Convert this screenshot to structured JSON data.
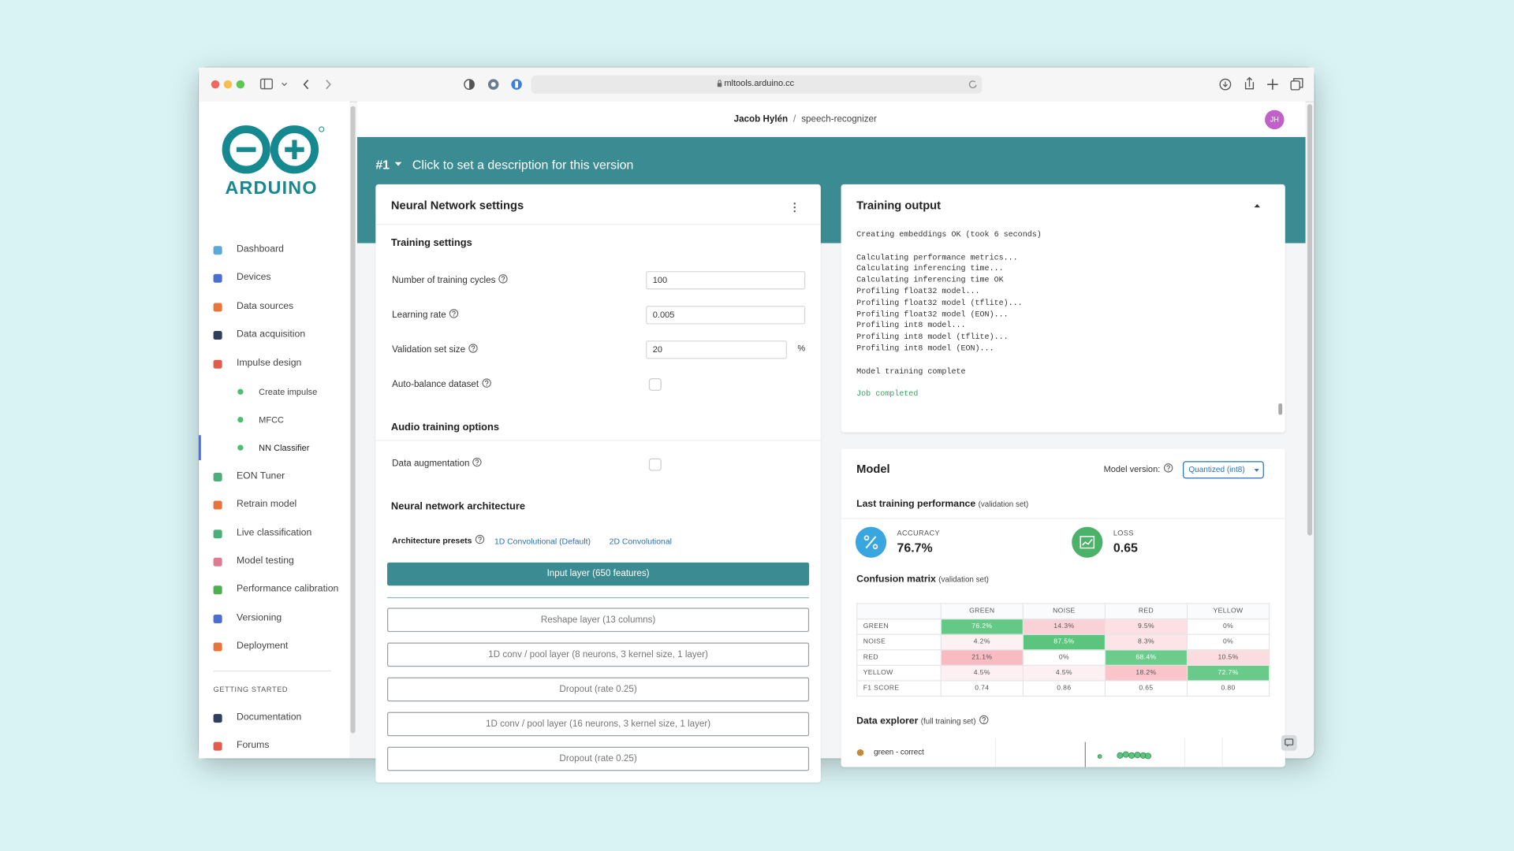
{
  "browser": {
    "url": "mltools.arduino.cc"
  },
  "sidebar": {
    "logo_text": "ARDUINO",
    "nav": [
      "Dashboard",
      "Devices",
      "Data sources",
      "Data acquisition",
      "Impulse design"
    ],
    "impulse_steps": [
      "Create impulse",
      "MFCC",
      "NN Classifier"
    ],
    "nav_more": [
      "EON Tuner",
      "Retrain model",
      "Live classification",
      "Model testing",
      "Performance calibration",
      "Versioning",
      "Deployment"
    ],
    "getting_started": {
      "title": "GETTING STARTED",
      "items": [
        "Documentation",
        "Forums"
      ]
    }
  },
  "header": {
    "user": "Jacob Hylén",
    "separator": "/",
    "project": "speech-recognizer",
    "avatar": "JH"
  },
  "version": {
    "number": "#1",
    "description": "Click to set a description for this version"
  },
  "nn_settings": {
    "title": "Neural Network settings",
    "training_title": "Training settings",
    "fields": [
      {
        "label": "Number of training cycles",
        "value": "100"
      },
      {
        "label": "Learning rate",
        "value": "0.005"
      },
      {
        "label": "Validation set size",
        "value": "20",
        "unit": "%"
      }
    ],
    "auto_balance": "Auto-balance dataset",
    "audio_title": "Audio training options",
    "augmentation": "Data augmentation",
    "arch_title": "Neural network architecture",
    "presets_label": "Architecture presets",
    "presets": [
      "1D Convolutional (Default)",
      "2D Convolutional"
    ],
    "input_layer": "Input layer (650 features)",
    "layers": [
      "Reshape layer (13 columns)",
      "1D conv / pool layer (8 neurons, 3 kernel size, 1 layer)",
      "Dropout (rate 0.25)",
      "1D conv / pool layer (16 neurons, 3 kernel size, 1 layer)",
      "Dropout (rate 0.25)"
    ]
  },
  "training_output": {
    "title": "Training output",
    "log": [
      [
        "Creating embeddings OK (took 6 seconds)"
      ],
      [
        "Calculating performance metrics...",
        "Calculating inferencing time...",
        "Calculating inferencing time OK",
        "Profiling float32 model...",
        "Profiling float32 model (tflite)...",
        "Profiling float32 model (EON)...",
        "Profiling int8 model...",
        "Profiling int8 model (tflite)...",
        "Profiling int8 model (EON)..."
      ],
      [
        "Model training complete"
      ],
      [
        "Job completed"
      ]
    ]
  },
  "model": {
    "title": "Model",
    "version_label": "Model version:",
    "version": "Quantized (int8)",
    "last_perf_title": "Last training performance",
    "last_perf_note": "(validation set)",
    "metrics": [
      {
        "label": "ACCURACY",
        "value": "76.7%"
      },
      {
        "label": "LOSS",
        "value": "0.65"
      }
    ],
    "confusion_title": "Confusion matrix",
    "confusion_note": "(validation set)",
    "confusion": {
      "columns": [
        "GREEN",
        "NOISE",
        "RED",
        "YELLOW"
      ],
      "rows": [
        {
          "label": "GREEN",
          "cells": [
            "76.2%",
            "14.3%",
            "9.5%",
            "0%"
          ]
        },
        {
          "label": "NOISE",
          "cells": [
            "4.2%",
            "87.5%",
            "8.3%",
            "0%"
          ]
        },
        {
          "label": "RED",
          "cells": [
            "21.1%",
            "0%",
            "68.4%",
            "10.5%"
          ]
        },
        {
          "label": "YELLOW",
          "cells": [
            "4.5%",
            "4.5%",
            "18.2%",
            "72.7%"
          ]
        },
        {
          "label": "F1 SCORE",
          "cells": [
            "0.74",
            "0.86",
            "0.65",
            "0.80"
          ]
        }
      ]
    },
    "explorer_title": "Data explorer",
    "explorer_note": "(full training set)",
    "explorer_legend": "green - correct"
  }
}
